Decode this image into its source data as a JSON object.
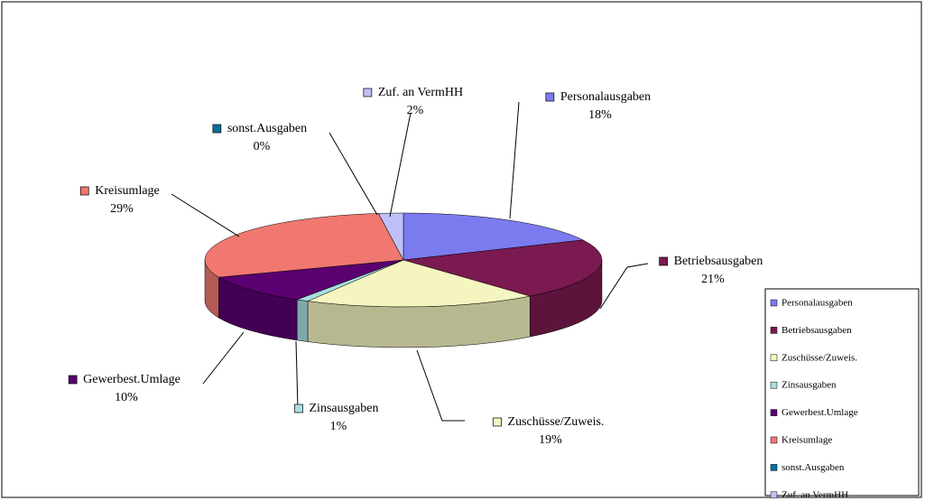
{
  "chart_data": {
    "type": "pie3d",
    "categories": [
      "Personalausgaben",
      "Betriebsausgaben",
      "Zuschüsse/Zuweis.",
      "Zinsausgaben",
      "Gewerbest.Umlage",
      "Kreisumlage",
      "sonst.Ausgaben",
      "Zuf. an VermHH"
    ],
    "values": [
      18,
      21,
      19,
      1,
      10,
      29,
      0,
      2
    ],
    "value_labels": [
      "18%",
      "21%",
      "19%",
      "1%",
      "10%",
      "29%",
      "0%",
      "2%"
    ],
    "colors": [
      "#7b7bf0",
      "#7a1a50",
      "#f5f5c0",
      "#a8e0e0",
      "#5a0070",
      "#f07870",
      "#0070a0",
      "#c0c0f8"
    ],
    "legend": "right"
  }
}
